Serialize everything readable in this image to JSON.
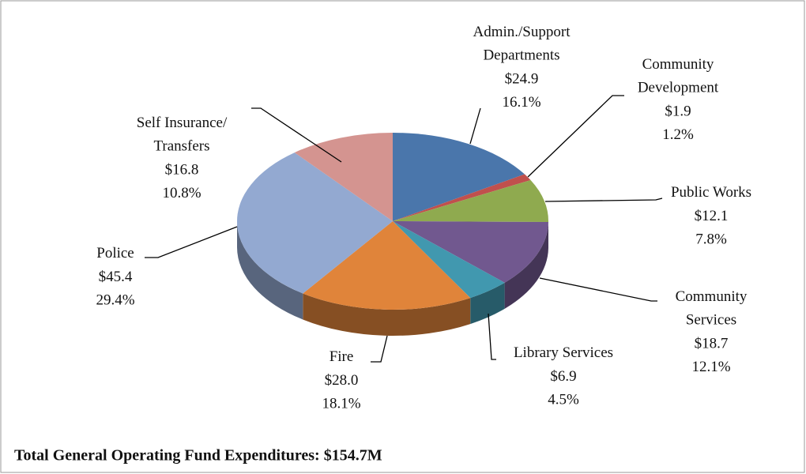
{
  "chart_data": {
    "type": "pie3d",
    "title": "Total General Operating Fund Expenditures: $154.7M",
    "categories": [
      "Admin./Support\nDepartments",
      "Community\nDevelopment",
      "Public Works",
      "Community\nServices",
      "Library Services",
      "Fire",
      "Police",
      "Self Insurance/\nTransfers"
    ],
    "values": [
      24.9,
      1.9,
      12.1,
      18.7,
      6.9,
      28.0,
      45.4,
      16.8
    ],
    "value_labels": [
      "$24.9",
      "$1.9",
      "$12.1",
      "$18.7",
      "$6.9",
      "$28.0",
      "$45.4",
      "$16.8"
    ],
    "percentages": [
      16.1,
      1.2,
      7.8,
      12.1,
      4.5,
      18.1,
      29.4,
      10.8
    ],
    "percentage_labels": [
      "16.1%",
      "1.2%",
      "7.8%",
      "12.1%",
      "4.5%",
      "18.1%",
      "29.4%",
      "10.8%"
    ],
    "colors": [
      "#4a76ab",
      "#c0504d",
      "#8faa4f",
      "#71588f",
      "#4198af",
      "#e0843a",
      "#93a9d1",
      "#d49490"
    ]
  }
}
